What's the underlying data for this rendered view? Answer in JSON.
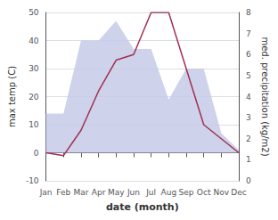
{
  "chart_data": {
    "type": "line",
    "xlabel": "date (month)",
    "ylabel": "max temp (C)",
    "y2label": "med. precipitation (kg/m2)",
    "categories": [
      "Jan",
      "Feb",
      "Mar",
      "Apr",
      "May",
      "Jun",
      "Jul",
      "Aug",
      "Sep",
      "Oct",
      "Nov",
      "Dec"
    ],
    "series": [
      {
        "type": "area",
        "color": "#c5cae8",
        "values": [
          14,
          14,
          40,
          40,
          47,
          37,
          37,
          19,
          30,
          30,
          7,
          1
        ]
      },
      {
        "type": "line",
        "color": "#a03050",
        "values": [
          0,
          -1,
          8,
          22,
          33,
          35,
          50,
          50,
          30,
          10,
          5,
          0
        ]
      }
    ],
    "ylim": [
      -10,
      50
    ],
    "yticks": [
      -10,
      0,
      10,
      20,
      30,
      40,
      50
    ],
    "y2lim": [
      0,
      8
    ],
    "y2ticks": [
      0,
      1,
      2,
      3,
      4,
      5,
      6,
      7,
      8
    ],
    "grid": true
  }
}
